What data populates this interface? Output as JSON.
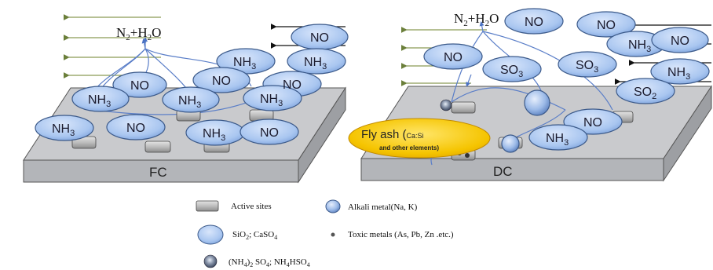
{
  "panels": {
    "left_label": "FC",
    "right_label": "DC"
  },
  "products": {
    "left": {
      "main": "N",
      "sub1": "2",
      "mid": "+H",
      "sub2": "2",
      "end": "O"
    },
    "right": {
      "main": "N",
      "sub1": "2",
      "mid": "+H",
      "sub2": "2",
      "end": "O"
    }
  },
  "molecules": {
    "no": "NO",
    "nh3_base": "NH",
    "nh3_sub": "3",
    "so3_base": "SO",
    "so3_sub": "3",
    "so2_base": "SO",
    "so2_sub": "2"
  },
  "fly_ash": {
    "title": "Fly ash (",
    "title_inner": "Ca:Si",
    "subtitle": "and other elements)"
  },
  "legend": {
    "active_sites": "Active sites",
    "alkali": "Alkali metal(Na, K)",
    "sio2_a": "SiO",
    "sio2_sub": "2",
    "sio2_b": "; CaSO",
    "sio2_sub2": "4",
    "toxic": "Toxic metals (As, Pb, Zn .etc.)",
    "nh4_a": "(NH",
    "nh4_sub": "4",
    "nh4_b": ")",
    "nh4_sub2": "2",
    "nh4_c": " SO",
    "nh4_sub3": "4",
    "nh4_d": "; NH",
    "nh4_sub4": "4",
    "nh4_e": "HSO",
    "nh4_sub5": "4"
  },
  "colors": {
    "molecule_fill": "#a9c6f0",
    "molecule_stroke": "#3c5a8a",
    "slab_top": "#c8c9cc",
    "slab_side": "#9fa1a5",
    "fly_ash": "#f5c400",
    "flow_arrow": "#4a72c4"
  }
}
